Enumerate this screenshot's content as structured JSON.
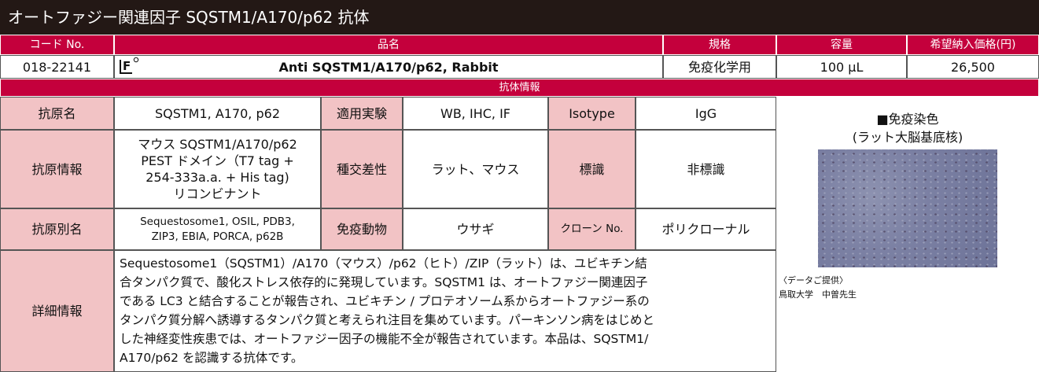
{
  "title": "オートファジー関連因子 SQSTM1/A170/p62 抗体",
  "header": [
    "コード No.",
    "品名",
    "規格",
    "容量",
    "希望納入価格(円)"
  ],
  "product": {
    "code": "018-22141",
    "badge": "F",
    "name": "Anti SQSTM1/A170/p62, Rabbit",
    "spec": "免疫化学用",
    "volume": "100 μL",
    "price": "26,500"
  },
  "section": "抗体情報",
  "rows": [
    [
      "抗原名",
      "SQSTM1, A170, p62",
      "適用実験",
      "WB, IHC, IF",
      "Isotype",
      "IgG"
    ],
    [
      "抗原情報",
      [
        "マウス SQSTM1/A170/p62",
        "PEST ドメイン（T7 tag +",
        "254-333a.a. + His tag)",
        "リコンビナント"
      ],
      "種交差性",
      "ラット、マウス",
      "標識",
      "非標識"
    ],
    [
      "抗原別名",
      [
        "Sequestosome1, OSIL, PDB3,",
        "ZIP3, EBIA, PORCA, p62B"
      ],
      "免疫動物",
      "ウサギ",
      "クローン No.",
      "ポリクローナル"
    ]
  ],
  "detail": {
    "label": "詳細情報",
    "lines": [
      "Sequestosome1（SQSTM1）/A170（マウス）/p62（ヒト）/ZIP（ラット）は、ユビキチン結",
      "合タンパク質で、酸化ストレス依存的に発現しています。SQSTM1 は、オートファジー関連因子",
      "である LC3 と結合することが報告され、ユビキチン / プロテオソーム系からオートファジー系の",
      "タンパク質分解へ誘導するタンパク質と考えられ注目を集めています。パーキンソン病をはじめと",
      "した神経変性疾患では、オートファジー因子の機能不全が報告されています。本品は、SQSTM1/",
      "A170/p62 を認識する抗体です。"
    ]
  },
  "image": {
    "caption": [
      "■免疫染色",
      "(ラット大脳基底核)"
    ],
    "credit": [
      "〈データご提供〉",
      "鳥取大学　中曽先生"
    ]
  }
}
